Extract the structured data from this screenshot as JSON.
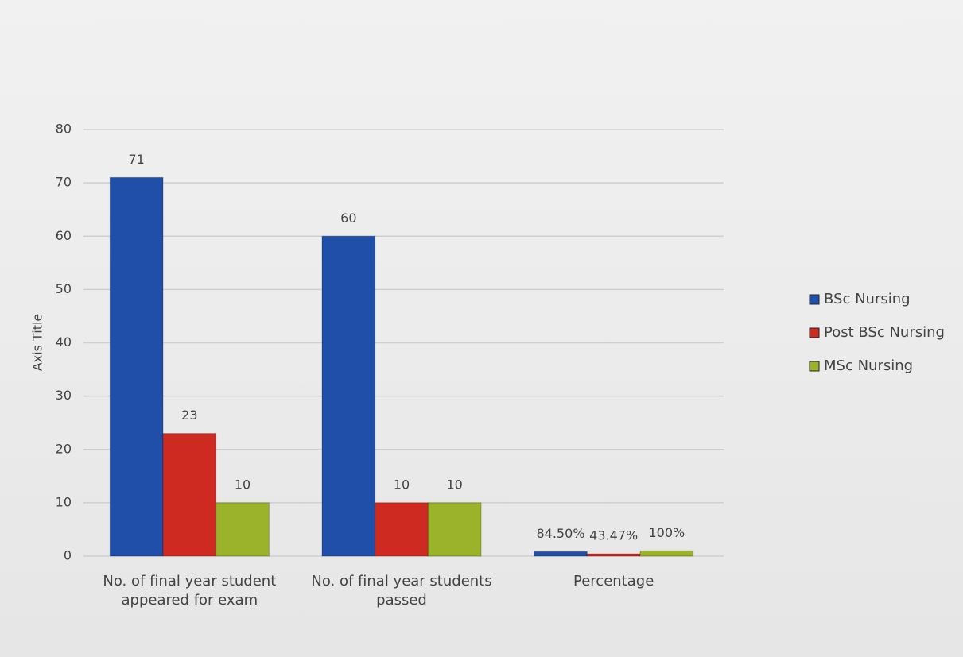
{
  "chart_data": {
    "type": "bar",
    "y_axis_title": "Axis Title",
    "categories": [
      "No. of final year student appeared for exam",
      "No. of final year students passed",
      "Percentage"
    ],
    "series": [
      {
        "name": "BSc Nursing",
        "color": "#1f4fa8",
        "values": [
          71,
          60,
          0.845
        ],
        "value_labels": [
          "71",
          "60",
          "84.50%"
        ]
      },
      {
        "name": "Post BSc Nursing",
        "color": "#cf2a22",
        "values": [
          23,
          10,
          0.4347
        ],
        "value_labels": [
          "23",
          "10",
          "43.47%"
        ]
      },
      {
        "name": "MSc Nursing",
        "color": "#9bb32a",
        "values": [
          10,
          10,
          1
        ],
        "value_labels": [
          "10",
          "10",
          "100%"
        ]
      }
    ],
    "ylim": [
      0,
      80
    ],
    "yticks": [
      0,
      10,
      20,
      30,
      40,
      50,
      60,
      70,
      80
    ],
    "grid": true,
    "legend": "right"
  }
}
